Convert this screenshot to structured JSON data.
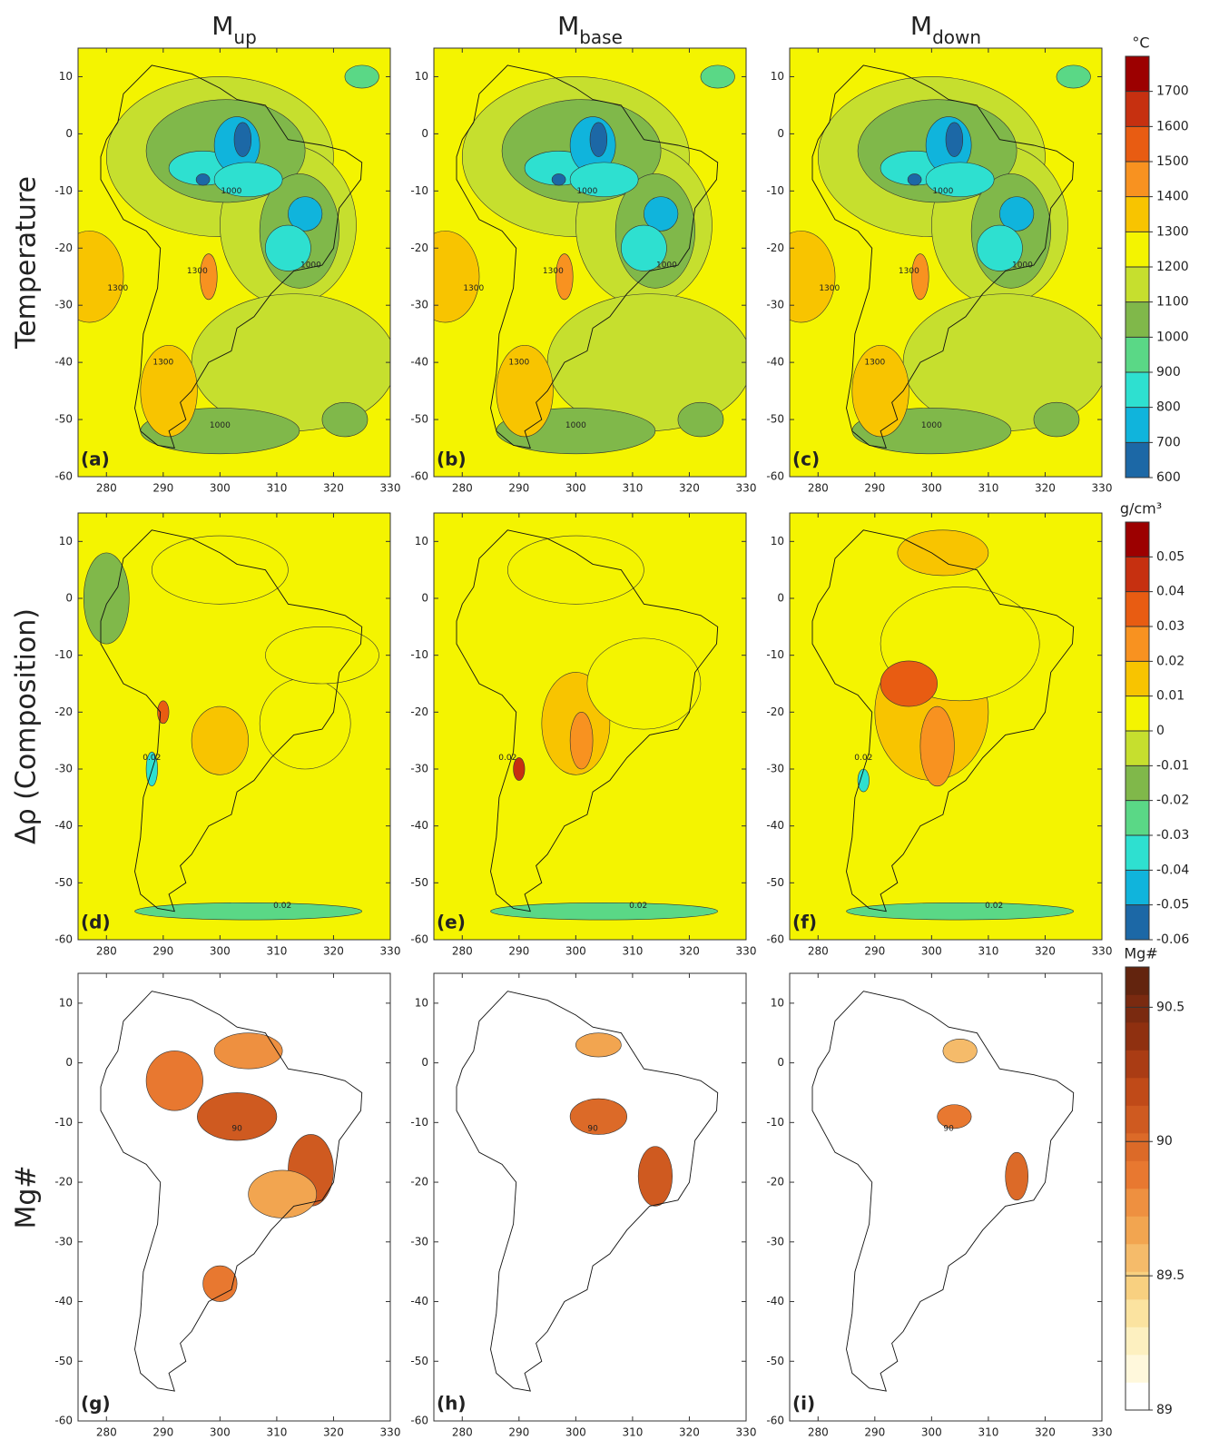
{
  "figure": {
    "columns": [
      {
        "main": "M",
        "sub": "up"
      },
      {
        "main": "M",
        "sub": "base"
      },
      {
        "main": "M",
        "sub": "down"
      }
    ],
    "xlim": [
      275,
      330
    ],
    "xticks": [
      280,
      290,
      300,
      310,
      320,
      330
    ],
    "ylim": [
      -60,
      15
    ],
    "yticks": [
      10,
      0,
      -10,
      -20,
      -30,
      -40,
      -50,
      -60
    ],
    "rows": [
      {
        "title": "Temperature",
        "panels": [
          "(a)",
          "(b)",
          "(c)"
        ],
        "contour_labels": [
          1000,
          1300
        ],
        "colorbar": {
          "unit": "°C",
          "lim": [
            600,
            1800
          ],
          "ticks": [
            600,
            700,
            800,
            900,
            1000,
            1100,
            1200,
            1300,
            1400,
            1500,
            1600,
            1700
          ],
          "colors": [
            "#1c68a6",
            "#10b4dc",
            "#2ee0d0",
            "#5ad886",
            "#80b84a",
            "#c6df2e",
            "#f4f400",
            "#f8c400",
            "#f89220",
            "#e85c12",
            "#c63010",
            "#9c0000"
          ]
        }
      },
      {
        "title": "Δρ (Composition)",
        "panels": [
          "(d)",
          "(e)",
          "(f)"
        ],
        "contour_labels": [
          0.02
        ],
        "colorbar": {
          "unit": "g/cm³",
          "lim": [
            -0.06,
            0.06
          ],
          "ticks": [
            -0.06,
            -0.05,
            -0.04,
            -0.03,
            -0.02,
            -0.01,
            0,
            0.01,
            0.02,
            0.03,
            0.04,
            0.05
          ],
          "colors": [
            "#1c68a6",
            "#10b4dc",
            "#2ee0d0",
            "#5ad886",
            "#80b84a",
            "#c6df2e",
            "#f4f400",
            "#f8c400",
            "#f89220",
            "#e85c12",
            "#c63010",
            "#9c0000"
          ]
        }
      },
      {
        "title": "Mg#",
        "panels": [
          "(g)",
          "(h)",
          "(i)"
        ],
        "contour_labels": [
          90
        ],
        "colorbar": {
          "unit": "Mg#",
          "lim": [
            89,
            90.65
          ],
          "ticks": [
            89,
            89.5,
            90,
            90.5
          ],
          "colors": [
            "#ffffff",
            "#fff8dc",
            "#fdf0c0",
            "#fbe3a0",
            "#f8d080",
            "#f5bb6a",
            "#f2a550",
            "#ee9040",
            "#e87830",
            "#dc6a28",
            "#cf5a20",
            "#c04a18",
            "#aa3c14",
            "#8f3010",
            "#7a2a10",
            "#63240e"
          ]
        }
      }
    ]
  }
}
